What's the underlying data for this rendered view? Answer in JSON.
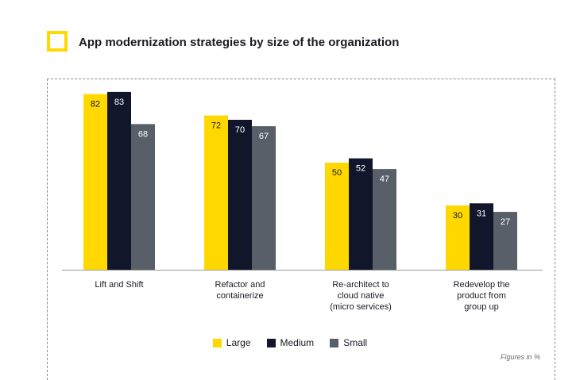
{
  "header": {
    "title": "App modernization strategies by size of the organization"
  },
  "note": "Figures in %",
  "chart_data": {
    "type": "bar",
    "title": "App modernization strategies by size of the organization",
    "categories": [
      [
        "Lift and Shift"
      ],
      [
        "Refactor and",
        "containerize"
      ],
      [
        "Re-architect to",
        "cloud native",
        "(micro services)"
      ],
      [
        "Redevelop the",
        "product from",
        "group up"
      ]
    ],
    "series": [
      {
        "name": "Large",
        "color": "#ffd800",
        "label_color": "#1a1a24",
        "values": [
          82,
          72,
          50,
          30
        ]
      },
      {
        "name": "Medium",
        "color": "#11162b",
        "label_color": "#ffffff",
        "values": [
          83,
          70,
          52,
          31
        ]
      },
      {
        "name": "Small",
        "color": "#585f68",
        "label_color": "#ffffff",
        "values": [
          68,
          67,
          47,
          27
        ]
      }
    ],
    "ylim": [
      0,
      100
    ],
    "legend_position": "bottom-center",
    "grid": false
  }
}
